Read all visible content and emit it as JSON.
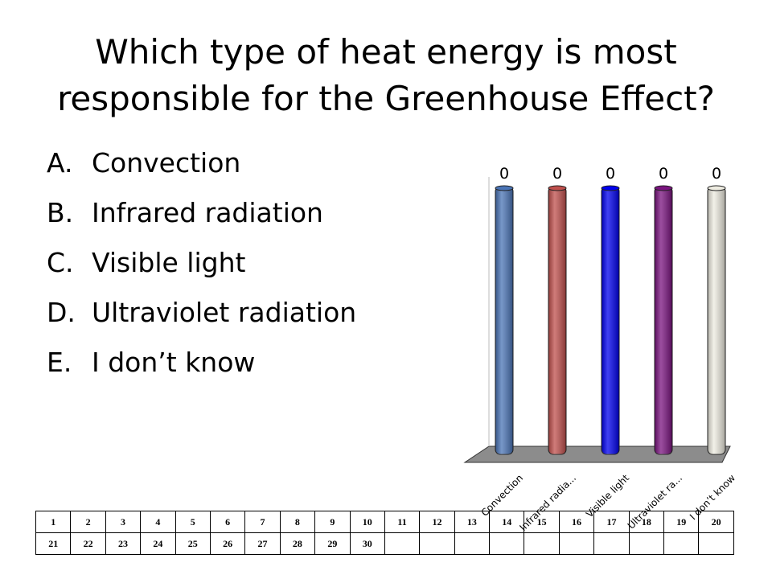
{
  "slide": {
    "title_line1": "Which type of heat energy is most",
    "title_line2": "responsible for the Greenhouse Effect?",
    "options": [
      {
        "letter": "A.",
        "text": "Convection"
      },
      {
        "letter": "B.",
        "text": "Infrared radiation"
      },
      {
        "letter": "C.",
        "text": "Visible light"
      },
      {
        "letter": "D.",
        "text": "Ultraviolet radiation"
      },
      {
        "letter": "E.",
        "text": "I don’t know"
      }
    ]
  },
  "chart_data": {
    "type": "bar",
    "categories": [
      "Convection",
      "Infrared radia...",
      "Visible light",
      "Ultraviolet ra...",
      "I don’t know"
    ],
    "values": [
      0,
      0,
      0,
      0,
      0
    ],
    "value_labels": [
      "0",
      "0",
      "0",
      "0",
      "0"
    ],
    "colors": [
      "#4a74b6",
      "#c0504d",
      "#0000ee",
      "#7a137f",
      "#eeece1"
    ],
    "title": "",
    "xlabel": "",
    "ylabel": ""
  },
  "keypad_grid": {
    "row1": [
      "1",
      "2",
      "3",
      "4",
      "5",
      "6",
      "7",
      "8",
      "9",
      "10",
      "11",
      "12",
      "13",
      "14",
      "15",
      "16",
      "17",
      "18",
      "19",
      "20"
    ],
    "row2": [
      "21",
      "22",
      "23",
      "24",
      "25",
      "26",
      "27",
      "28",
      "29",
      "30",
      "",
      "",
      "",
      "",
      "",
      "",
      "",
      "",
      "",
      ""
    ]
  }
}
